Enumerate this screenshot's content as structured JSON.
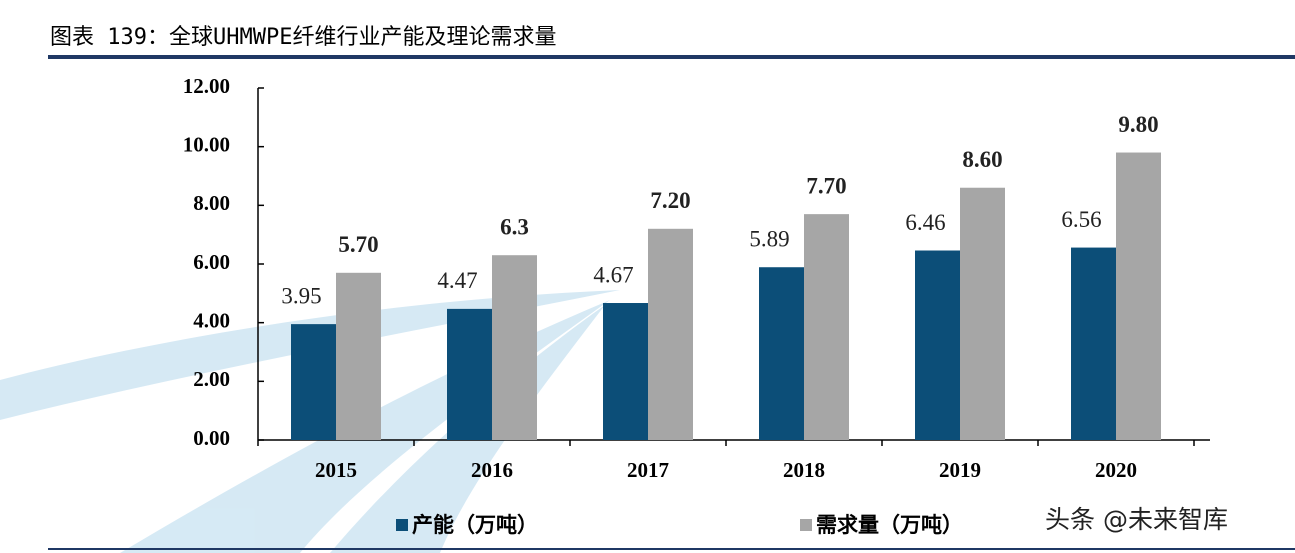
{
  "chart_data": {
    "type": "bar",
    "title": "图表 139：全球UHMWPE纤维行业产能及理论需求量",
    "categories": [
      "2015",
      "2016",
      "2017",
      "2018",
      "2019",
      "2020"
    ],
    "series": [
      {
        "name": "产能（万吨）",
        "color": "#0c4e78",
        "values": [
          3.95,
          4.47,
          4.67,
          5.89,
          6.46,
          6.56
        ]
      },
      {
        "name": "需求量（万吨）",
        "color": "#a6a6a6",
        "values": [
          5.7,
          6.3,
          7.2,
          7.7,
          8.6,
          9.8
        ],
        "value_labels": [
          "5.70",
          "6.3",
          "7.20",
          "7.70",
          "8.60",
          "9.80"
        ]
      }
    ],
    "ylim": [
      0,
      12
    ],
    "yticks": [
      {
        "value": 0,
        "label": "0.00"
      },
      {
        "value": 2,
        "label": "2.00"
      },
      {
        "value": 4,
        "label": "4.00"
      },
      {
        "value": 6,
        "label": "6.00"
      },
      {
        "value": 8,
        "label": "8.00"
      },
      {
        "value": 10,
        "label": "10.00"
      },
      {
        "value": 12,
        "label": "12.00"
      }
    ],
    "legend": "bottom",
    "watermark": "头条 @未来智库"
  }
}
